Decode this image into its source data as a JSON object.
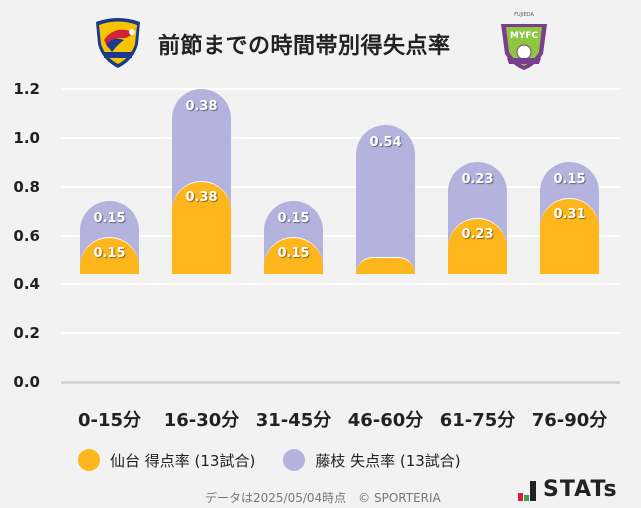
{
  "header": {
    "title": "前節までの時間帯別得失点率",
    "home_logo": "vegalta-sendai-crest",
    "away_logo": "fujieda-myfc-crest",
    "away_logo_text": "FUJIEDA"
  },
  "chart_data": {
    "type": "bar",
    "stacked": true,
    "title": "前節までの時間帯別得失点率",
    "xlabel": "",
    "ylabel": "",
    "ylim": [
      0,
      1.2
    ],
    "yticks": [
      "0.0",
      "0.2",
      "0.4",
      "0.6",
      "0.8",
      "1.0",
      "1.2"
    ],
    "grid": true,
    "legend_position": "bottom",
    "categories": [
      "0-15分",
      "16-30分",
      "31-45分",
      "46-60分",
      "61-75分",
      "76-90分"
    ],
    "series": [
      {
        "name": "仙台 得点率 (13試合)",
        "color": "#fdb71c",
        "values": [
          0.15,
          0.38,
          0.15,
          0.0,
          0.23,
          0.31
        ],
        "labels": [
          "0.15",
          "0.38",
          "0.15",
          "",
          "0.23",
          "0.31"
        ]
      },
      {
        "name": "藤枝 失点率 (13試合)",
        "color": "#b4b3de",
        "values": [
          0.15,
          0.38,
          0.15,
          0.54,
          0.23,
          0.15
        ],
        "labels": [
          "0.15",
          "0.38",
          "0.15",
          "0.54",
          "0.23",
          "0.15"
        ]
      }
    ]
  },
  "legend": {
    "items": [
      {
        "label": "仙台 得点率 (13試合)",
        "color": "#fdb71c"
      },
      {
        "label": "藤枝 失点率 (13試合)",
        "color": "#b4b3de"
      }
    ]
  },
  "footer": {
    "note": "データは2025/05/04時点　© SPORTERIA",
    "brand": "STATs"
  }
}
